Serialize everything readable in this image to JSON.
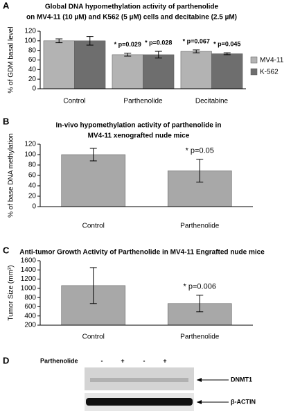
{
  "panel_labels": [
    "A",
    "B",
    "C",
    "D"
  ],
  "chart_data": [
    {
      "type": "bar",
      "title": [
        "Global DNA hypomethylation activity of parthenolide",
        "on MV4-11 (10 µM) and K562 (5 µM) cells and decitabine (2.5 µM)"
      ],
      "y_label": "% of GDM basal level",
      "categories": [
        "Control",
        "Parthenolide",
        "Decitabine"
      ],
      "series": [
        {
          "name": "MV4-11",
          "color": "#b3b3b3",
          "values": [
            100,
            71,
            78
          ],
          "errors": [
            4,
            3,
            3
          ]
        },
        {
          "name": "K-562",
          "color": "#6e6e6e",
          "values": [
            100,
            71,
            73
          ],
          "errors": [
            9,
            7,
            2
          ]
        }
      ],
      "annotations": [
        "* p=0.029",
        "* p=0.028",
        "* p=0.067",
        "* p=0.045"
      ],
      "ylim": [
        0,
        120
      ],
      "yticks": [
        0,
        20,
        40,
        60,
        80,
        100,
        120
      ],
      "legend": "right"
    },
    {
      "type": "bar",
      "title": [
        "In-vivo hypomethylation activity of parthenolide in",
        "MV4-11 xenografted nude mice"
      ],
      "y_label": "% of base DNA methylation",
      "categories": [
        "Control",
        "Parthenolide"
      ],
      "color": "#a8a8a8",
      "values": [
        100,
        69
      ],
      "errors": [
        12,
        22
      ],
      "annotations": [
        "* p=0.05"
      ],
      "ylim": [
        0,
        120
      ],
      "yticks": [
        0,
        20,
        40,
        60,
        80,
        100,
        120
      ]
    },
    {
      "type": "bar",
      "title": [
        "Anti-tumor Growth Activity of Parthenolide in MV4-11 Engrafted nude mice"
      ],
      "y_label": "Tumor Size (mm³)",
      "categories": [
        "Control",
        "Parthenolide"
      ],
      "color": "#a8a8a8",
      "values": [
        1060,
        670
      ],
      "errors": [
        390,
        180
      ],
      "annotations": [
        "* p=0.006"
      ],
      "ylim": [
        200,
        1600
      ],
      "yticks": [
        200,
        400,
        600,
        800,
        1000,
        1200,
        1400,
        1600
      ]
    }
  ],
  "blot": {
    "treatment_label": "Parthenolide",
    "lanes": [
      "-",
      "+",
      "-",
      "+"
    ],
    "bands": [
      "DNMT1",
      "β-ACTIN"
    ]
  }
}
